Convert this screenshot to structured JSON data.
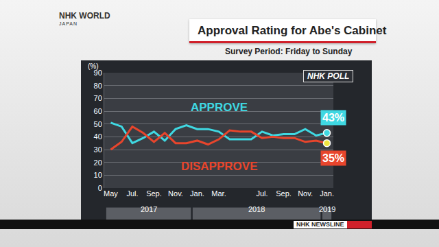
{
  "chart_data": {
    "type": "line",
    "title": "Approval Rating for Abe's Cabinet",
    "subtitle": "Survey Period: Friday to Sunday",
    "y_label": "(%)",
    "badge": "NHK POLL",
    "channel": [
      "NHK WORLD",
      "JAPAN"
    ],
    "program": "NHK NEWSLINE",
    "categories": [
      "May",
      null,
      "Jul.",
      null,
      "Sep.",
      null,
      "Nov.",
      null,
      "Jan.",
      null,
      "Mar.",
      null,
      null,
      null,
      "Jul.",
      null,
      "Sep.",
      null,
      "Nov.",
      null,
      "Jan."
    ],
    "x_groups": [
      {
        "text": "2017",
        "first": 0,
        "last": 7
      },
      {
        "text": "2018",
        "first": 8,
        "last": 19
      },
      {
        "text": "2019",
        "first": 20,
        "last": 20
      }
    ],
    "series": [
      {
        "name": "APPROVE",
        "color": "#3fd8e2",
        "values": [
          51,
          48,
          35,
          39,
          44,
          37,
          46,
          49,
          46,
          46,
          44,
          38,
          38,
          38,
          44,
          41,
          42,
          42,
          46,
          41,
          43
        ],
        "value_labels": [
          null,
          null,
          null,
          null,
          null,
          null,
          null,
          null,
          null,
          null,
          null,
          null,
          null,
          null,
          null,
          null,
          null,
          null,
          null,
          null,
          "43%"
        ]
      },
      {
        "name": "DISAPPROVE",
        "color": "#e8452c",
        "values": [
          30,
          36,
          48,
          43,
          36,
          43,
          35,
          35,
          37,
          34,
          38,
          45,
          44,
          44,
          39,
          40,
          39,
          39,
          36,
          37,
          35
        ],
        "value_labels": [
          null,
          null,
          null,
          null,
          null,
          null,
          null,
          null,
          null,
          null,
          null,
          null,
          null,
          null,
          null,
          null,
          null,
          null,
          null,
          null,
          "35%"
        ]
      }
    ],
    "ylim": [
      0,
      90
    ],
    "yticks": [
      0,
      10,
      20,
      30,
      40,
      50,
      60,
      70,
      80,
      90
    ],
    "grid": true,
    "data_labels": true
  }
}
